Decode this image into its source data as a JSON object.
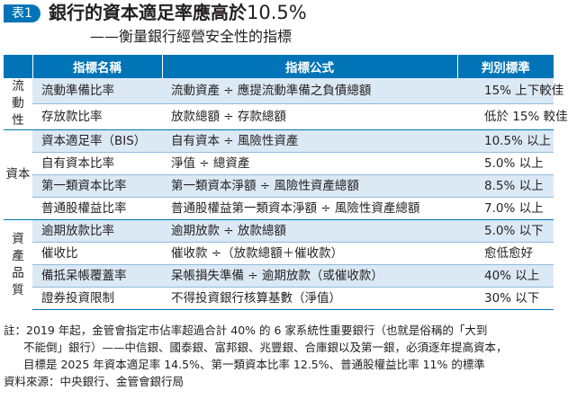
{
  "header": {
    "tag": "表1",
    "title": "銀行的資本適足率應高於",
    "title_num": "10.5%",
    "subtitle": "——衡量銀行經營安全性的指標"
  },
  "table": {
    "columns": [
      "",
      "指標名稱",
      "指標公式",
      "判別標準"
    ],
    "groups": [
      {
        "category": "流動性",
        "rows": [
          {
            "name": "流動準備比率",
            "formula": "流動資產 ÷ 應提流動準備之負債總額",
            "standard": "15% 上下較佳"
          },
          {
            "name": "存放款比率",
            "formula": "放款總額 ÷ 存款總額",
            "standard": "低於 15% 較佳"
          }
        ]
      },
      {
        "category": "資本",
        "rows": [
          {
            "name": "資本適足率（BIS）",
            "formula": "自有資本 ÷ 風險性資產",
            "standard": "10.5% 以上"
          },
          {
            "name": "自有資本比率",
            "formula": "淨值 ÷ 總資產",
            "standard": "5.0% 以上"
          },
          {
            "name": "第一類資本比率",
            "formula": "第一類資本淨額 ÷ 風險性資產總額",
            "standard": "8.5% 以上"
          },
          {
            "name": "普通股權益比率",
            "formula": "普通股權益第一類資本淨額 ÷ 風險性資產總額",
            "standard": "7.0% 以上"
          }
        ]
      },
      {
        "category": "資產品質",
        "rows": [
          {
            "name": "逾期放款比率",
            "formula": "逾期放款 ÷ 放款總額",
            "standard": "5.0% 以下"
          },
          {
            "name": "催收比",
            "formula": "催收款 ÷（放款總額＋催收款）",
            "standard": "愈低愈好"
          },
          {
            "name": "備抵呆帳覆蓋率",
            "formula": "呆帳損失準備 ÷ 逾期放款（或催收款）",
            "standard": "40% 以上"
          },
          {
            "name": "證券投資限制",
            "formula": "不得投資銀行核算基數（淨值）",
            "standard": "30% 以下"
          }
        ]
      }
    ]
  },
  "notes": {
    "line1": "註：2019 年起，金管會指定市佔率超過合計 40% 的 6 家系統性重要銀行（也就是俗稱的「大到",
    "line2": "不能倒」銀行）——中信銀、國泰銀、富邦銀、兆豐銀、合庫銀以及第一銀，必須逐年提高資本，",
    "line3": "目標是 2025 年資本適足率 14.5%、第一類資本比率 12.5%、普通股權益比率 11% 的標準",
    "source": "資料來源：中央銀行、金管會銀行局"
  },
  "colors": {
    "accent": "#0074b7",
    "shade": "#dbe9f5",
    "rule": "#8fbcdc"
  }
}
